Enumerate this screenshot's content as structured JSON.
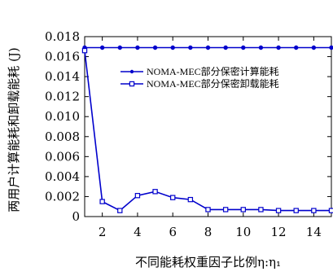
{
  "chart_data": {
    "type": "line",
    "xlabel": "不同能耗权重因子比例η:η₁",
    "ylabel": "两用户计算能耗和卸载能耗 (J)",
    "xlim": [
      1,
      15
    ],
    "ylim": [
      0,
      0.018
    ],
    "x_ticks": [
      2,
      4,
      6,
      8,
      10,
      12,
      14
    ],
    "y_ticks": [
      0,
      0.002,
      0.004,
      0.006,
      0.008,
      0.01,
      0.012,
      0.014,
      0.016,
      0.018
    ],
    "x_tick_labels": [
      "2",
      "4",
      "6",
      "8",
      "10",
      "12",
      "14"
    ],
    "y_tick_labels": [
      "0",
      "0.002",
      "0.004",
      "0.006",
      "0.008",
      "0.010",
      "0.012",
      "0.014",
      "0.016",
      "0.018"
    ],
    "grid": false,
    "legend_position": "top-right",
    "x": [
      1,
      2,
      3,
      4,
      5,
      6,
      7,
      8,
      9,
      10,
      11,
      12,
      13,
      14,
      15
    ],
    "series": [
      {
        "name": "NOMA-MEC部分保密计算能耗",
        "marker": "circle",
        "color": "#0000cc",
        "values": [
          0.0169,
          0.0169,
          0.0169,
          0.0169,
          0.0169,
          0.0169,
          0.0169,
          0.0169,
          0.0169,
          0.0169,
          0.0169,
          0.0169,
          0.0169,
          0.0169,
          0.0169
        ]
      },
      {
        "name": "NOMA-MEC部分保密卸载能耗",
        "marker": "square",
        "color": "#0000cc",
        "values": [
          0.0166,
          0.0015,
          0.0006,
          0.0021,
          0.0025,
          0.0019,
          0.0017,
          0.0007,
          0.0007,
          0.0007,
          0.0007,
          0.0006,
          0.0006,
          0.0006,
          0.0006
        ]
      }
    ]
  }
}
